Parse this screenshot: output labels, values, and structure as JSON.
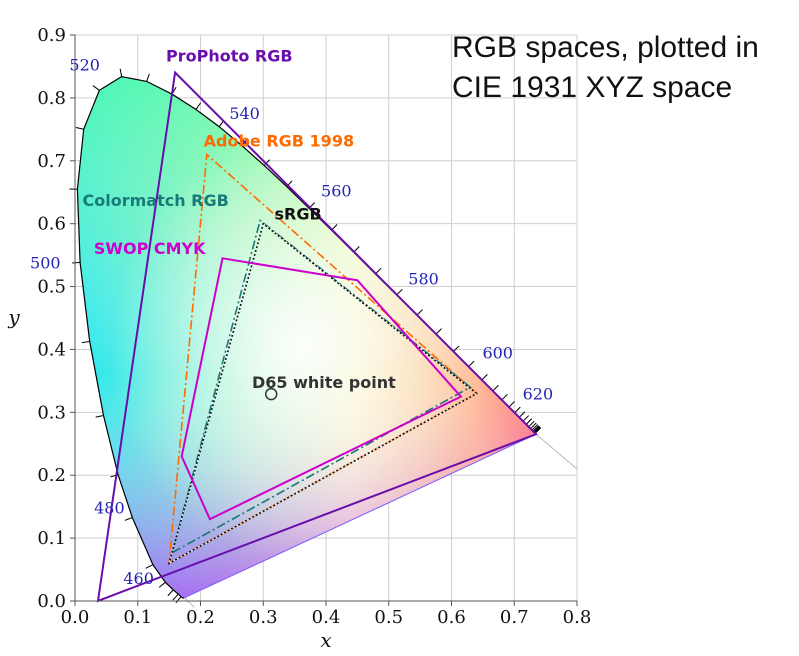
{
  "title_lines": [
    "RGB spaces, plotted in",
    "CIE 1931 XYZ space"
  ],
  "chart_data": {
    "type": "scatter",
    "xlabel": "x",
    "ylabel": "y",
    "xlim": [
      0.0,
      0.8
    ],
    "ylim": [
      0.0,
      0.9
    ],
    "x_ticks": [
      "0.0",
      "0.1",
      "0.2",
      "0.3",
      "0.4",
      "0.5",
      "0.6",
      "0.7",
      "0.8"
    ],
    "y_ticks": [
      "0.0",
      "0.1",
      "0.2",
      "0.3",
      "0.4",
      "0.5",
      "0.6",
      "0.7",
      "0.8",
      "0.9"
    ],
    "grid": true,
    "spectral_locus": [
      [
        0.1741,
        0.005
      ],
      [
        0.1738,
        0.0049
      ],
      [
        0.173,
        0.0048
      ],
      [
        0.1714,
        0.0051
      ],
      [
        0.1689,
        0.0069
      ],
      [
        0.1644,
        0.0109
      ],
      [
        0.1566,
        0.0177
      ],
      [
        0.144,
        0.0297
      ],
      [
        0.1241,
        0.0578
      ],
      [
        0.0913,
        0.1327
      ],
      [
        0.0687,
        0.2007
      ],
      [
        0.0454,
        0.295
      ],
      [
        0.0235,
        0.4127
      ],
      [
        0.0082,
        0.5384
      ],
      [
        0.0039,
        0.6548
      ],
      [
        0.0139,
        0.7502
      ],
      [
        0.0389,
        0.812
      ],
      [
        0.0743,
        0.8338
      ],
      [
        0.1142,
        0.8262
      ],
      [
        0.1547,
        0.8059
      ],
      [
        0.1929,
        0.7816
      ],
      [
        0.2296,
        0.7543
      ],
      [
        0.2658,
        0.7243
      ],
      [
        0.3016,
        0.6923
      ],
      [
        0.3373,
        0.6589
      ],
      [
        0.3731,
        0.6245
      ],
      [
        0.4087,
        0.5896
      ],
      [
        0.4441,
        0.5547
      ],
      [
        0.4788,
        0.5202
      ],
      [
        0.5125,
        0.4866
      ],
      [
        0.5448,
        0.4544
      ],
      [
        0.5752,
        0.4242
      ],
      [
        0.6029,
        0.3965
      ],
      [
        0.627,
        0.3725
      ],
      [
        0.6482,
        0.3514
      ],
      [
        0.6658,
        0.334
      ],
      [
        0.6801,
        0.3197
      ],
      [
        0.6915,
        0.3083
      ],
      [
        0.7006,
        0.2993
      ],
      [
        0.7079,
        0.292
      ],
      [
        0.714,
        0.2859
      ],
      [
        0.719,
        0.2809
      ],
      [
        0.723,
        0.277
      ],
      [
        0.726,
        0.274
      ],
      [
        0.7283,
        0.2717
      ],
      [
        0.73,
        0.27
      ],
      [
        0.7311,
        0.2689
      ],
      [
        0.732,
        0.268
      ],
      [
        0.7327,
        0.2673
      ],
      [
        0.7334,
        0.2666
      ],
      [
        0.734,
        0.266
      ],
      [
        0.7344,
        0.2656
      ],
      [
        0.7346,
        0.2654
      ],
      [
        0.7347,
        0.2653
      ]
    ],
    "wavelength_labels": [
      {
        "label": "460",
        "x": 0.144,
        "y": 0.03
      },
      {
        "label": "480",
        "x": 0.091,
        "y": 0.133
      },
      {
        "label": "500",
        "x": 0.008,
        "y": 0.538
      },
      {
        "label": "520",
        "x": 0.074,
        "y": 0.834
      },
      {
        "label": "540",
        "x": 0.23,
        "y": 0.754
      },
      {
        "label": "560",
        "x": 0.373,
        "y": 0.624
      },
      {
        "label": "580",
        "x": 0.512,
        "y": 0.487
      },
      {
        "label": "600",
        "x": 0.627,
        "y": 0.373
      },
      {
        "label": "620",
        "x": 0.691,
        "y": 0.308
      }
    ],
    "series": [
      {
        "name": "ProPhoto RGB",
        "color": "#6a0dad",
        "style": "solid",
        "points": [
          [
            0.7347,
            0.2653
          ],
          [
            0.1596,
            0.8404
          ],
          [
            0.0366,
            0.0001
          ]
        ]
      },
      {
        "name": "Adobe RGB 1998",
        "color": "#ff6a00",
        "style": "dashdot",
        "points": [
          [
            0.64,
            0.33
          ],
          [
            0.21,
            0.71
          ],
          [
            0.15,
            0.06
          ]
        ]
      },
      {
        "name": "Colormatch RGB",
        "color": "#1a7a7a",
        "style": "dashdot",
        "points": [
          [
            0.63,
            0.34
          ],
          [
            0.295,
            0.605
          ],
          [
            0.155,
            0.077
          ]
        ]
      },
      {
        "name": "sRGB",
        "color": "#111111",
        "style": "dotted",
        "points": [
          [
            0.64,
            0.33
          ],
          [
            0.3,
            0.6
          ],
          [
            0.15,
            0.06
          ]
        ]
      },
      {
        "name": "SWOP CMYK",
        "color": "#cc00cc",
        "style": "solid",
        "points": [
          [
            0.235,
            0.545
          ],
          [
            0.45,
            0.51
          ],
          [
            0.615,
            0.325
          ],
          [
            0.215,
            0.13
          ],
          [
            0.17,
            0.23
          ]
        ]
      }
    ],
    "white_point": {
      "label": "D65 white point",
      "x": 0.3127,
      "y": 0.329
    },
    "annotations": [
      {
        "text": "ProPhoto RGB",
        "color": "#6a0dad",
        "x": 0.145,
        "y": 0.858
      },
      {
        "text": "Adobe RGB 1998",
        "color": "#ff6a00",
        "x": 0.205,
        "y": 0.723
      },
      {
        "text": "Colormatch RGB",
        "color": "#1a7a7a",
        "x": 0.012,
        "y": 0.628
      },
      {
        "text": "sRGB",
        "color": "#111111",
        "x": 0.318,
        "y": 0.607
      },
      {
        "text": "SWOP CMYK",
        "color": "#cc00cc",
        "x": 0.03,
        "y": 0.552
      },
      {
        "text": "D65 white point",
        "color": "#333333",
        "x": 0.282,
        "y": 0.339
      }
    ]
  }
}
